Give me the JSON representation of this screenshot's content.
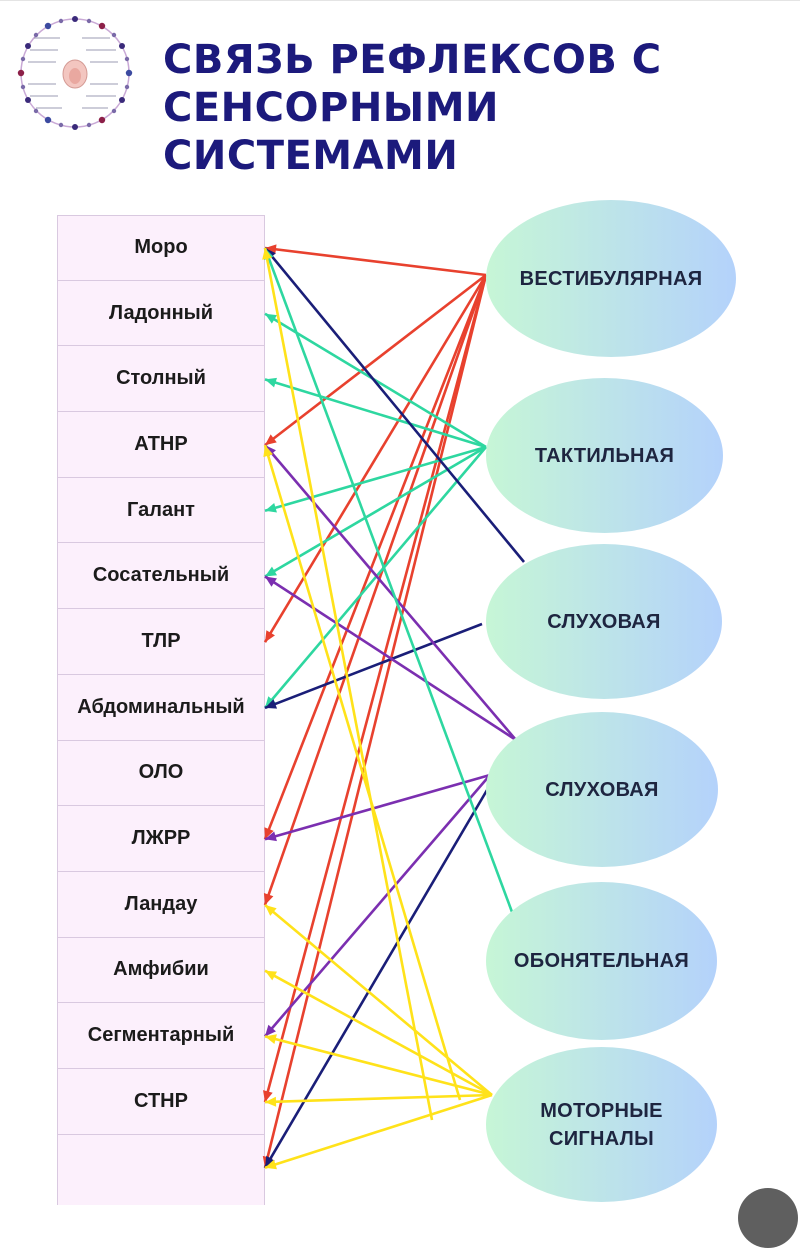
{
  "title": {
    "line1": "СВЯЗЬ РЕФЛЕКСОВ С",
    "line2": "СЕНСОРНЫМИ СИСТЕМАМИ"
  },
  "reflexes": [
    "Моро",
    "Ладонный",
    "Столный",
    "АТНР",
    "Галант",
    "Сосательный",
    "ТЛР",
    "Абдоминальный",
    "ОЛО",
    "ЛЖРР",
    "Ландау",
    "Амфибии",
    "Сегментарный",
    "СТНР",
    ""
  ],
  "systems": [
    "ВЕСТИБУЛЯРНАЯ",
    "ТАКТИЛЬНАЯ",
    "СЛУХОВАЯ",
    "СЛУХОВАЯ",
    "ОБОНЯТЕЛЬНАЯ",
    "МОТОРНЫЕ\nСИГНАЛЫ"
  ],
  "colors": {
    "title": "#1c1a7c",
    "vestibular": "#e8412e",
    "tactile": "#2ed7a0",
    "auditory": "#1a1e78",
    "auditory2": "#7b2fb0",
    "motor": "#ffe21a"
  },
  "links": [
    {
      "from": "ВЕСТИБУЛЯРНАЯ",
      "to": "Моро",
      "color": "vestibular"
    },
    {
      "from": "ВЕСТИБУЛЯРНАЯ",
      "to": "АТНР",
      "color": "vestibular"
    },
    {
      "from": "ВЕСТИБУЛЯРНАЯ",
      "to": "ТЛР",
      "color": "vestibular"
    },
    {
      "from": "ВЕСТИБУЛЯРНАЯ",
      "to": "ЛЖРР",
      "color": "vestibular"
    },
    {
      "from": "ВЕСТИБУЛЯРНАЯ",
      "to": "Ландау",
      "color": "vestibular"
    },
    {
      "from": "ВЕСТИБУЛЯРНАЯ",
      "to": "СТНР",
      "color": "vestibular"
    },
    {
      "from": "ВЕСТИБУЛЯРНАЯ",
      "to": "",
      "color": "vestibular"
    },
    {
      "from": "ТАКТИЛЬНАЯ",
      "to": "Ладонный",
      "color": "tactile"
    },
    {
      "from": "ТАКТИЛЬНАЯ",
      "to": "Столный",
      "color": "tactile"
    },
    {
      "from": "ТАКТИЛЬНАЯ",
      "to": "Галант",
      "color": "tactile"
    },
    {
      "from": "ТАКТИЛЬНАЯ",
      "to": "Сосательный",
      "color": "tactile"
    },
    {
      "from": "ТАКТИЛЬНАЯ",
      "to": "Абдоминальный",
      "color": "tactile"
    },
    {
      "from": "СЛУХОВАЯ",
      "to": "Моро",
      "color": "auditory"
    },
    {
      "from": "СЛУХОВАЯ",
      "to": "Абдоминальный",
      "color": "auditory"
    },
    {
      "from": "СЛУХОВАЯ",
      "to": "АТНР",
      "color": "auditory2"
    },
    {
      "from": "СЛУХОВАЯ",
      "to": "Сегментарный",
      "color": "auditory2"
    },
    {
      "from": "СЛУХОВАЯ#2",
      "to": "Сосательный",
      "color": "auditory2"
    },
    {
      "from": "СЛУХОВАЯ#2",
      "to": "ЛЖРР",
      "color": "auditory2"
    },
    {
      "from": "СЛУХОВАЯ#2",
      "to": "",
      "color": "auditory"
    },
    {
      "from": "ОБОНЯТЕЛЬНАЯ",
      "to": "Моро",
      "color": "tactile"
    },
    {
      "from": "МОТОРНЫЕ СИГНАЛЫ",
      "to": "Моро",
      "color": "motor"
    },
    {
      "from": "МОТОРНЫЕ СИГНАЛЫ",
      "to": "АТНР",
      "color": "motor"
    },
    {
      "from": "МОТОРНЫЕ СИГНАЛЫ",
      "to": "Ландау",
      "color": "motor"
    },
    {
      "from": "МОТОРНЫЕ СИГНАЛЫ",
      "to": "Амфибии",
      "color": "motor"
    },
    {
      "from": "МОТОРНЫЕ СИГНАЛЫ",
      "to": "Сегментарный",
      "color": "motor"
    },
    {
      "from": "МОТОРНЫЕ СИГНАЛЫ",
      "to": "СТНР",
      "color": "motor"
    },
    {
      "from": "МОТОРНЫЕ СИГНАЛЫ",
      "to": "",
      "color": "motor"
    }
  ]
}
